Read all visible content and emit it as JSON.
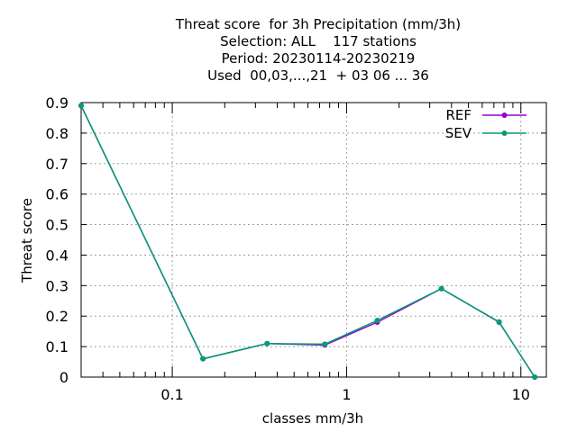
{
  "chart_data": {
    "type": "line",
    "title_lines": [
      "Threat score  for 3h Precipitation (mm/3h)",
      "Selection: ALL    117 stations",
      "Period: 20230114-20230219",
      "Used  00,03,...,21  + 03 06 ... 36"
    ],
    "xlabel": "classes mm/3h",
    "ylabel": "Threat score",
    "x_scale": "log",
    "xlim": [
      0.03,
      14
    ],
    "ylim": [
      0,
      0.9
    ],
    "x_ticks": [
      0.1,
      1,
      10
    ],
    "x_tick_labels": [
      "0.1",
      "1",
      "10"
    ],
    "y_ticks": [
      0,
      0.1,
      0.2,
      0.3,
      0.4,
      0.5,
      0.6,
      0.7,
      0.8,
      0.9
    ],
    "y_tick_labels": [
      "0",
      "0.1",
      "0.2",
      "0.3",
      "0.4",
      "0.5",
      "0.6",
      "0.7",
      "0.8",
      "0.9"
    ],
    "grid": true,
    "legend_position": "top-right",
    "series": [
      {
        "name": "REF",
        "color": "#9400D3",
        "x": [
          0.03,
          0.15,
          0.35,
          0.75,
          1.5,
          3.5,
          7.5,
          12
        ],
        "y": [
          0.89,
          0.06,
          0.11,
          0.105,
          0.18,
          0.29,
          0.18,
          0.0
        ]
      },
      {
        "name": "SEV",
        "color": "#009E73",
        "x": [
          0.03,
          0.15,
          0.35,
          0.75,
          1.5,
          3.5,
          7.5,
          12
        ],
        "y": [
          0.89,
          0.06,
          0.11,
          0.108,
          0.186,
          0.29,
          0.181,
          0.0
        ]
      }
    ]
  }
}
